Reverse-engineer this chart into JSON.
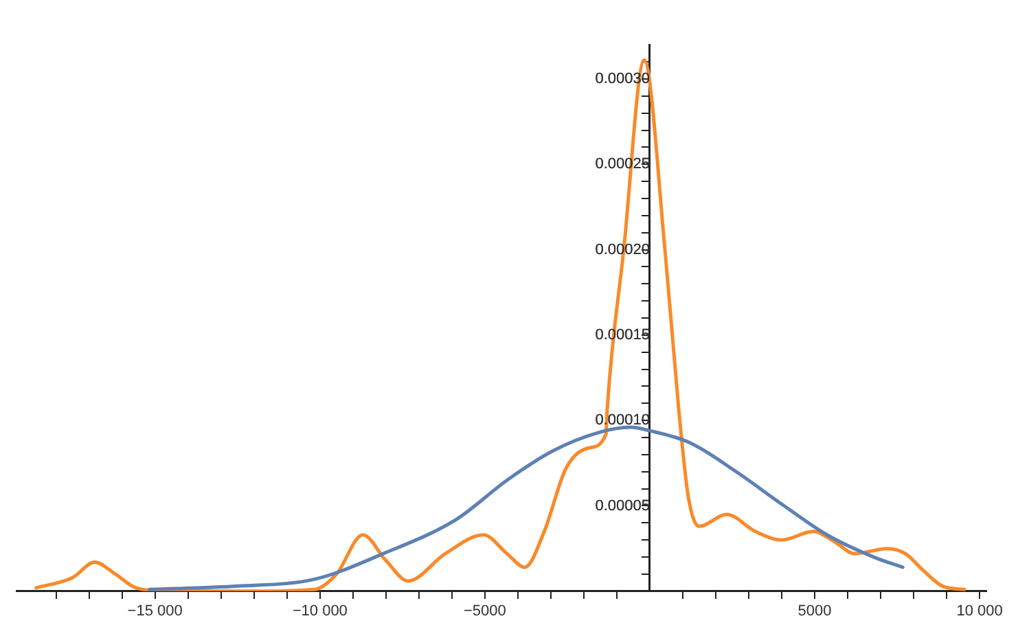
{
  "chart_data": {
    "type": "line",
    "xlim": [
      -19200,
      10200
    ],
    "ylim": [
      0,
      0.00032
    ],
    "grid": false,
    "legend": false,
    "marker": "none",
    "line_style": "solid",
    "xticks": [
      {
        "value": -18000,
        "label": null
      },
      {
        "value": -17000,
        "label": null
      },
      {
        "value": -16000,
        "label": null
      },
      {
        "value": -15000,
        "label": "−15 000"
      },
      {
        "value": -14000,
        "label": null
      },
      {
        "value": -13000,
        "label": null
      },
      {
        "value": -12000,
        "label": null
      },
      {
        "value": -11000,
        "label": null
      },
      {
        "value": -10000,
        "label": "−10 000"
      },
      {
        "value": -9000,
        "label": null
      },
      {
        "value": -8000,
        "label": null
      },
      {
        "value": -7000,
        "label": null
      },
      {
        "value": -6000,
        "label": null
      },
      {
        "value": -5000,
        "label": "−5000"
      },
      {
        "value": -4000,
        "label": null
      },
      {
        "value": -3000,
        "label": null
      },
      {
        "value": -2000,
        "label": null
      },
      {
        "value": -1000,
        "label": null
      },
      {
        "value": 1000,
        "label": null
      },
      {
        "value": 2000,
        "label": null
      },
      {
        "value": 3000,
        "label": null
      },
      {
        "value": 4000,
        "label": null
      },
      {
        "value": 5000,
        "label": "5000"
      },
      {
        "value": 6000,
        "label": null
      },
      {
        "value": 7000,
        "label": null
      },
      {
        "value": 8000,
        "label": null
      },
      {
        "value": 9000,
        "label": null
      },
      {
        "value": 10000,
        "label": "10 000"
      }
    ],
    "yticks": [
      {
        "value": 1e-05,
        "label": null
      },
      {
        "value": 2e-05,
        "label": null
      },
      {
        "value": 3e-05,
        "label": null
      },
      {
        "value": 4e-05,
        "label": null
      },
      {
        "value": 5e-05,
        "label": "0.00005"
      },
      {
        "value": 6e-05,
        "label": null
      },
      {
        "value": 7e-05,
        "label": null
      },
      {
        "value": 8e-05,
        "label": null
      },
      {
        "value": 9e-05,
        "label": null
      },
      {
        "value": 0.0001,
        "label": "0.00010"
      },
      {
        "value": 0.00011,
        "label": null
      },
      {
        "value": 0.00012,
        "label": null
      },
      {
        "value": 0.00013,
        "label": null
      },
      {
        "value": 0.00014,
        "label": null
      },
      {
        "value": 0.00015,
        "label": "0.00015"
      },
      {
        "value": 0.00016,
        "label": null
      },
      {
        "value": 0.00017,
        "label": null
      },
      {
        "value": 0.00018,
        "label": null
      },
      {
        "value": 0.00019,
        "label": null
      },
      {
        "value": 0.0002,
        "label": "0.00020"
      },
      {
        "value": 0.00021,
        "label": null
      },
      {
        "value": 0.00022,
        "label": null
      },
      {
        "value": 0.00023,
        "label": null
      },
      {
        "value": 0.00024,
        "label": null
      },
      {
        "value": 0.00025,
        "label": "0.00025"
      },
      {
        "value": 0.00026,
        "label": null
      },
      {
        "value": 0.00027,
        "label": null
      },
      {
        "value": 0.00028,
        "label": null
      },
      {
        "value": 0.00029,
        "label": null
      },
      {
        "value": 0.0003,
        "label": "0.00030"
      },
      {
        "value": 0.00031,
        "label": null
      }
    ],
    "series": [
      {
        "color": "#5e81b5",
        "x": [
          -15170,
          -12500,
          -10170,
          -8080,
          -5870,
          -4330,
          -2960,
          -1540,
          -580,
          0,
          1210,
          2620,
          4000,
          5375,
          6790,
          7670
        ],
        "values": [
          1e-06,
          3e-06,
          7e-06,
          2.2e-05,
          4.2e-05,
          6.5e-05,
          8.2e-05,
          9.3e-05,
          9.6e-05,
          9.4e-05,
          8.7e-05,
          7e-05,
          5.1e-05,
          3.3e-05,
          2e-05,
          1.4e-05
        ]
      },
      {
        "color": "#f98a2a",
        "x": [
          -18600,
          -17500,
          -16830,
          -16200,
          -15580,
          -14500,
          -12000,
          -10170,
          -9500,
          -8700,
          -8000,
          -7330,
          -6200,
          -5040,
          -4330,
          -3790,
          -3200,
          -2540,
          -1830,
          -1330,
          -1290,
          -790,
          -170,
          460,
          875,
          1170,
          1500,
          2330,
          3200,
          4000,
          4960,
          5600,
          6210,
          7210,
          7750,
          8300,
          8875,
          9540
        ],
        "values": [
          2e-06,
          8e-06,
          1.7e-05,
          1e-05,
          2e-06,
          0,
          0,
          1e-06,
          1e-05,
          3.3e-05,
          1.8e-05,
          6e-06,
          2.2e-05,
          3.3e-05,
          2.2e-05,
          1.4e-05,
          3.5e-05,
          7.2e-05,
          8.4e-05,
          9.2e-05,
          0.000107,
          0.0002,
          0.000311,
          0.0002,
          0.000107,
          5.5e-05,
          3.8e-05,
          4.5e-05,
          3.5e-05,
          3e-05,
          3.5e-05,
          2.9e-05,
          2.2e-05,
          2.5e-05,
          2.2e-05,
          1.2e-05,
          3e-06,
          1e-06
        ]
      }
    ]
  }
}
